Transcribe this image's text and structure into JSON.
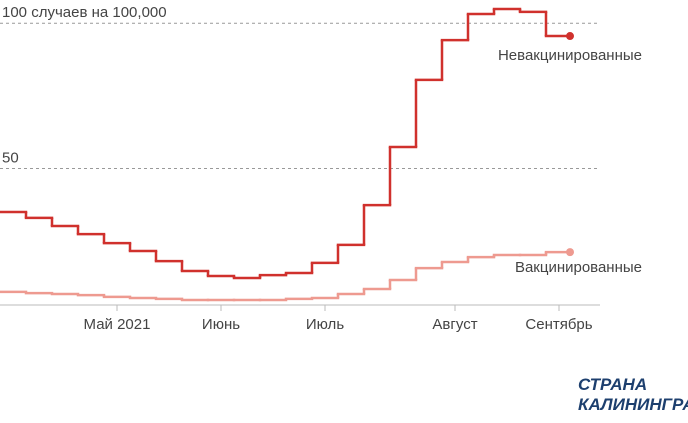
{
  "chart_data": {
    "type": "step",
    "categories": [
      null,
      null,
      null,
      null,
      "Май 2021",
      null,
      null,
      null,
      "Июнь",
      null,
      null,
      null,
      "Июль",
      null,
      null,
      null,
      null,
      "Август",
      null,
      null,
      null,
      "Сентябрь"
    ],
    "series": [
      {
        "name": "Невакцинированные",
        "color": "#d0312d",
        "values": [
          35.0,
          33.0,
          30.2,
          27.4,
          24.3,
          21.6,
          18.1,
          14.7,
          13.0,
          12.3,
          13.3,
          14.0,
          17.5,
          23.7,
          37.4,
          57.4,
          80.5,
          94.2,
          103.2,
          104.9,
          103.9,
          95.6
        ]
      },
      {
        "name": "Вакцинированные",
        "color": "#ee9a90",
        "values": [
          7.5,
          7.1,
          6.8,
          6.4,
          5.8,
          5.4,
          5.1,
          4.7,
          4.7,
          4.7,
          4.7,
          5.1,
          5.4,
          6.8,
          8.5,
          11.6,
          15.7,
          17.8,
          19.5,
          20.2,
          20.2,
          21.2
        ]
      }
    ],
    "ylim": [
      3,
      108
    ],
    "yticks": [
      50,
      {
        "value": 100,
        "label": "100 случаев на 100,000"
      }
    ],
    "grid": true
  },
  "logo": [
    "СТРАНА",
    "КАЛИНИНГРАД"
  ]
}
